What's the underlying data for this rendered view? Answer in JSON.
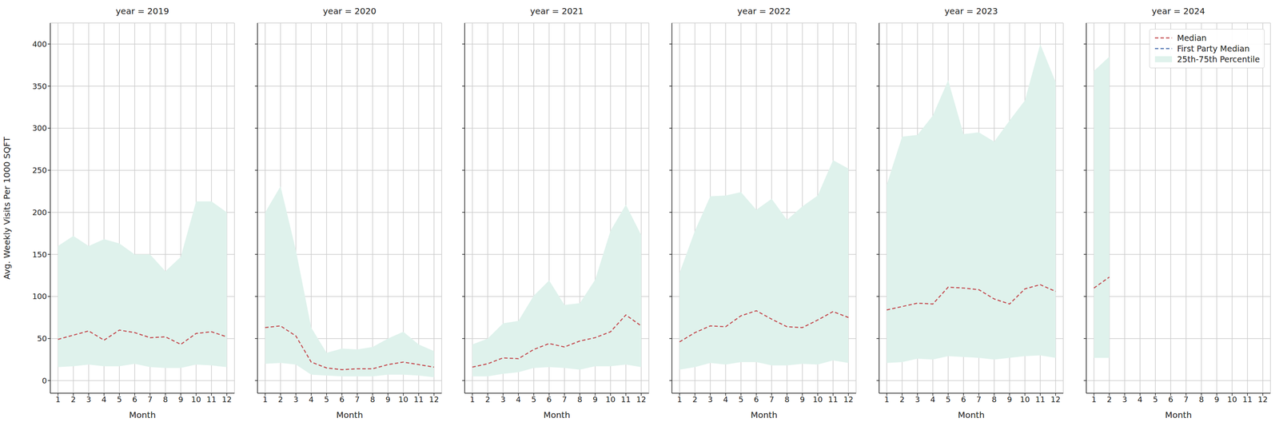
{
  "chart_data": [
    {
      "type": "line",
      "title": "year = 2019",
      "x_label": "Month",
      "y_label": "Avg. Weekly Visits Per 1000 SQFT",
      "x": [
        1,
        2,
        3,
        4,
        5,
        6,
        7,
        8,
        9,
        10,
        11,
        12
      ],
      "xlim": [
        0.5,
        12.5
      ],
      "xticks": [
        1,
        2,
        3,
        4,
        5,
        6,
        7,
        8,
        9,
        10,
        11,
        12
      ],
      "ylim": [
        -15,
        425
      ],
      "yticks": [
        0,
        50,
        100,
        150,
        200,
        250,
        300,
        350,
        400
      ],
      "grid": true,
      "series": [
        {
          "name": "Median",
          "color": "#c44e52",
          "line_style": "dashed",
          "values": [
            49,
            54,
            59,
            48,
            60,
            57,
            51,
            52,
            43,
            56,
            58,
            52
          ]
        },
        {
          "name": "First Party Median",
          "color": "#4c72b0",
          "line_style": "dashed",
          "values": [
            null,
            null,
            null,
            null,
            null,
            null,
            null,
            null,
            null,
            null,
            null,
            null
          ]
        },
        {
          "name": "25th-75th Percentile",
          "type": "band",
          "color": "#dff2ec",
          "low": [
            16,
            17,
            19,
            17,
            17,
            20,
            16,
            15,
            15,
            19,
            18,
            16
          ],
          "high": [
            160,
            172,
            160,
            168,
            163,
            150,
            150,
            130,
            147,
            213,
            213,
            200
          ]
        }
      ]
    },
    {
      "type": "line",
      "title": "year = 2020",
      "x_label": "Month",
      "x": [
        1,
        2,
        3,
        4,
        5,
        6,
        7,
        8,
        9,
        10,
        11,
        12
      ],
      "xlim": [
        0.5,
        12.5
      ],
      "xticks": [
        1,
        2,
        3,
        4,
        5,
        6,
        7,
        8,
        9,
        10,
        11,
        12
      ],
      "ylim": [
        -15,
        425
      ],
      "yticks": [
        0,
        50,
        100,
        150,
        200,
        250,
        300,
        350,
        400
      ],
      "grid": true,
      "tick_labels": "x",
      "series": [
        {
          "name": "Median",
          "color": "#c44e52",
          "line_style": "dashed",
          "values": [
            63,
            65,
            53,
            22,
            15,
            13,
            14,
            14,
            19,
            22,
            19,
            16
          ]
        },
        {
          "name": "First Party Median",
          "color": "#4c72b0",
          "line_style": "dashed",
          "values": [
            null,
            null,
            null,
            null,
            null,
            null,
            null,
            null,
            null,
            null,
            null,
            null
          ]
        },
        {
          "name": "25th-75th Percentile",
          "type": "band",
          "color": "#dff2ec",
          "low": [
            20,
            21,
            19,
            7,
            6,
            5,
            5,
            5,
            7,
            7,
            6,
            4
          ],
          "high": [
            200,
            231,
            155,
            63,
            33,
            38,
            37,
            40,
            50,
            58,
            43,
            35
          ]
        }
      ]
    },
    {
      "type": "line",
      "title": "year = 2021",
      "x_label": "Month",
      "x": [
        1,
        2,
        3,
        4,
        5,
        6,
        7,
        8,
        9,
        10,
        11,
        12
      ],
      "xlim": [
        0.5,
        12.5
      ],
      "xticks": [
        1,
        2,
        3,
        4,
        5,
        6,
        7,
        8,
        9,
        10,
        11,
        12
      ],
      "ylim": [
        -15,
        425
      ],
      "yticks": [
        0,
        50,
        100,
        150,
        200,
        250,
        300,
        350,
        400
      ],
      "grid": true,
      "tick_labels": "x",
      "series": [
        {
          "name": "Median",
          "color": "#c44e52",
          "line_style": "dashed",
          "values": [
            16,
            20,
            27,
            26,
            37,
            44,
            40,
            47,
            51,
            58,
            78,
            65
          ]
        },
        {
          "name": "First Party Median",
          "color": "#4c72b0",
          "line_style": "dashed",
          "values": [
            null,
            null,
            null,
            null,
            null,
            null,
            null,
            null,
            null,
            null,
            null,
            null
          ]
        },
        {
          "name": "25th-75th Percentile",
          "type": "band",
          "color": "#dff2ec",
          "low": [
            5,
            5,
            8,
            10,
            15,
            16,
            15,
            13,
            17,
            17,
            19,
            16
          ],
          "high": [
            43,
            50,
            68,
            71,
            101,
            119,
            90,
            92,
            120,
            178,
            209,
            173
          ]
        }
      ]
    },
    {
      "type": "line",
      "title": "year = 2022",
      "x_label": "Month",
      "x": [
        1,
        2,
        3,
        4,
        5,
        6,
        7,
        8,
        9,
        10,
        11,
        12
      ],
      "xlim": [
        0.5,
        12.5
      ],
      "xticks": [
        1,
        2,
        3,
        4,
        5,
        6,
        7,
        8,
        9,
        10,
        11,
        12
      ],
      "ylim": [
        -15,
        425
      ],
      "yticks": [
        0,
        50,
        100,
        150,
        200,
        250,
        300,
        350,
        400
      ],
      "grid": true,
      "tick_labels": "x",
      "series": [
        {
          "name": "Median",
          "color": "#c44e52",
          "line_style": "dashed",
          "values": [
            46,
            57,
            65,
            64,
            77,
            83,
            73,
            64,
            63,
            72,
            82,
            75
          ]
        },
        {
          "name": "First Party Median",
          "color": "#4c72b0",
          "line_style": "dashed",
          "values": [
            null,
            null,
            null,
            null,
            null,
            null,
            null,
            null,
            null,
            null,
            null,
            null
          ]
        },
        {
          "name": "25th-75th Percentile",
          "type": "band",
          "color": "#dff2ec",
          "low": [
            13,
            16,
            21,
            19,
            22,
            22,
            18,
            18,
            20,
            19,
            24,
            21
          ],
          "high": [
            128,
            178,
            219,
            220,
            224,
            203,
            216,
            191,
            207,
            220,
            262,
            252
          ]
        }
      ]
    },
    {
      "type": "line",
      "title": "year = 2023",
      "x_label": "Month",
      "x": [
        1,
        2,
        3,
        4,
        5,
        6,
        7,
        8,
        9,
        10,
        11,
        12
      ],
      "xlim": [
        0.5,
        12.5
      ],
      "xticks": [
        1,
        2,
        3,
        4,
        5,
        6,
        7,
        8,
        9,
        10,
        11,
        12
      ],
      "ylim": [
        -15,
        425
      ],
      "yticks": [
        0,
        50,
        100,
        150,
        200,
        250,
        300,
        350,
        400
      ],
      "grid": true,
      "tick_labels": "x",
      "series": [
        {
          "name": "Median",
          "color": "#c44e52",
          "line_style": "dashed",
          "values": [
            84,
            88,
            92,
            91,
            111,
            110,
            108,
            97,
            91,
            109,
            114,
            106
          ]
        },
        {
          "name": "First Party Median",
          "color": "#4c72b0",
          "line_style": "dashed",
          "values": [
            null,
            null,
            null,
            null,
            null,
            null,
            null,
            null,
            null,
            null,
            null,
            null
          ]
        },
        {
          "name": "25th-75th Percentile",
          "type": "band",
          "color": "#dff2ec",
          "low": [
            21,
            22,
            26,
            25,
            29,
            28,
            27,
            25,
            27,
            29,
            30,
            27
          ],
          "high": [
            233,
            290,
            292,
            315,
            357,
            293,
            295,
            284,
            309,
            333,
            400,
            355
          ]
        }
      ]
    },
    {
      "type": "line",
      "title": "year = 2024",
      "x_label": "Month",
      "x": [
        1,
        2,
        3,
        4,
        5,
        6,
        7,
        8,
        9,
        10,
        11,
        12
      ],
      "xlim": [
        0.5,
        12.5
      ],
      "xticks": [
        1,
        2,
        3,
        4,
        5,
        6,
        7,
        8,
        9,
        10,
        11,
        12
      ],
      "ylim": [
        -15,
        425
      ],
      "yticks": [
        0,
        50,
        100,
        150,
        200,
        250,
        300,
        350,
        400
      ],
      "grid": true,
      "tick_labels": "x",
      "legend": "upper right",
      "series": [
        {
          "name": "Median",
          "color": "#c44e52",
          "line_style": "dashed",
          "values": [
            110,
            123,
            null,
            null,
            null,
            null,
            null,
            null,
            null,
            null,
            null,
            null
          ]
        },
        {
          "name": "First Party Median",
          "color": "#4c72b0",
          "line_style": "dashed",
          "values": [
            null,
            null,
            null,
            null,
            null,
            null,
            null,
            null,
            null,
            null,
            null,
            null
          ]
        },
        {
          "name": "25th-75th Percentile",
          "type": "band",
          "color": "#dff2ec",
          "low": [
            27,
            27,
            null,
            null,
            null,
            null,
            null,
            null,
            null,
            null,
            null,
            null
          ],
          "high": [
            368,
            385,
            null,
            null,
            null,
            null,
            null,
            null,
            null,
            null,
            null,
            null
          ]
        }
      ]
    }
  ]
}
